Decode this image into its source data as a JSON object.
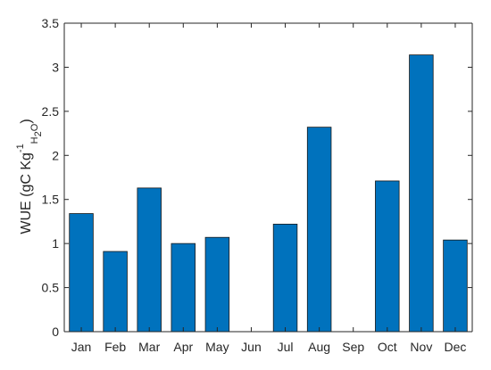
{
  "chart_data": {
    "type": "bar",
    "title": "",
    "xlabel": "",
    "ylabel": {
      "prefix": "WUE (gC Kg",
      "superscript": "-1",
      "subscript_h": "H",
      "subscript_2": "2",
      "subscript_o": "O",
      "suffix": ")"
    },
    "categories": [
      "Jan",
      "Feb",
      "Mar",
      "Apr",
      "May",
      "Jun",
      "Jul",
      "Aug",
      "Sep",
      "Oct",
      "Nov",
      "Dec"
    ],
    "values": [
      1.34,
      0.91,
      1.63,
      1.0,
      1.07,
      null,
      1.22,
      2.32,
      null,
      1.71,
      3.14,
      1.04
    ],
    "ylim": [
      0,
      3.5
    ],
    "yticks": [
      0,
      0.5,
      1,
      1.5,
      2,
      2.5,
      3,
      3.5
    ],
    "ytick_labels": [
      "0",
      "0.5",
      "1",
      "1.5",
      "2",
      "2.5",
      "3",
      "3.5"
    ],
    "grid": false,
    "bar_color": "#0072BD",
    "bar_edge_color": "#1a1a1a",
    "axis_color": "#262626"
  }
}
